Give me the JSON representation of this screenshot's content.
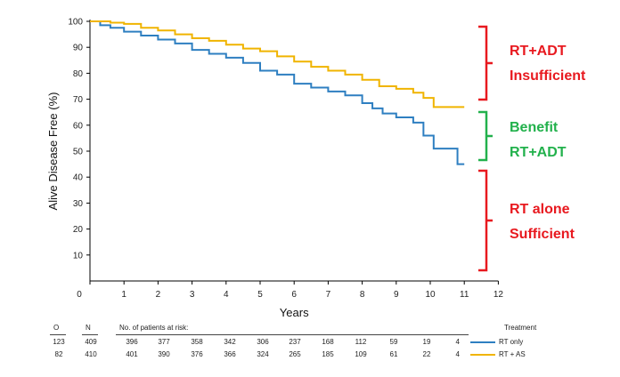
{
  "chart_data": {
    "type": "line",
    "xlabel": "Years",
    "ylabel": "Alive Disease Free (%)",
    "xlim": [
      0,
      12
    ],
    "ylim": [
      0,
      100
    ],
    "x_ticks": [
      0,
      1,
      2,
      3,
      4,
      5,
      6,
      7,
      8,
      9,
      10,
      11,
      12
    ],
    "y_ticks": [
      10,
      20,
      30,
      40,
      50,
      60,
      70,
      80,
      90,
      100
    ],
    "grid": false,
    "series": [
      {
        "name": "RT only",
        "color": "#2e7fc1",
        "x": [
          0,
          0.3,
          0.6,
          1,
          1.5,
          2,
          2.5,
          3,
          3.5,
          4,
          4.5,
          5,
          5.5,
          6,
          6.5,
          7,
          7.5,
          8,
          8.3,
          8.6,
          9,
          9.5,
          9.8,
          10.1,
          10.5,
          10.8,
          11
        ],
        "y": [
          100,
          98.5,
          97.5,
          96,
          94.5,
          93,
          91.5,
          89,
          87.5,
          86,
          84,
          81,
          79.5,
          76,
          74.5,
          73,
          71.5,
          68.5,
          66.5,
          64.5,
          63,
          61,
          56,
          51,
          51,
          45,
          45
        ]
      },
      {
        "name": "RT + AS",
        "color": "#f0b400",
        "x": [
          0,
          0.6,
          1,
          1.5,
          2,
          2.5,
          3,
          3.5,
          4,
          4.5,
          5,
          5.5,
          6,
          6.5,
          7,
          7.5,
          8,
          8.5,
          9,
          9.5,
          9.8,
          10.1,
          10.5,
          11
        ],
        "y": [
          100,
          99.5,
          99,
          97.5,
          96.5,
          95,
          93.5,
          92.5,
          91,
          89.5,
          88.5,
          86.5,
          84.5,
          82.5,
          81,
          79.5,
          77.5,
          75,
          74,
          72.5,
          70.5,
          67,
          67,
          67
        ]
      }
    ]
  },
  "annotations": [
    {
      "lines": [
        "RT+ADT",
        "Insufficient"
      ],
      "color": "#e8191f"
    },
    {
      "lines": [
        "Benefit",
        "RT+ADT"
      ],
      "color": "#22b14c"
    },
    {
      "lines": [
        "RT alone",
        "Sufficient"
      ],
      "color": "#e8191f"
    }
  ],
  "risk_table": {
    "headers": {
      "o": "O",
      "n": "N",
      "title": "No. of patients at risk:",
      "treatment": "Treatment"
    },
    "rows": [
      {
        "o": "123",
        "n": "409",
        "counts": [
          "396",
          "377",
          "358",
          "342",
          "306",
          "237",
          "168",
          "112",
          "59",
          "19",
          "4"
        ],
        "label": "RT only",
        "color": "#2e7fc1"
      },
      {
        "o": "82",
        "n": "410",
        "counts": [
          "401",
          "390",
          "376",
          "366",
          "324",
          "265",
          "185",
          "109",
          "61",
          "22",
          "4"
        ],
        "label": "RT + AS",
        "color": "#f0b400"
      }
    ]
  }
}
